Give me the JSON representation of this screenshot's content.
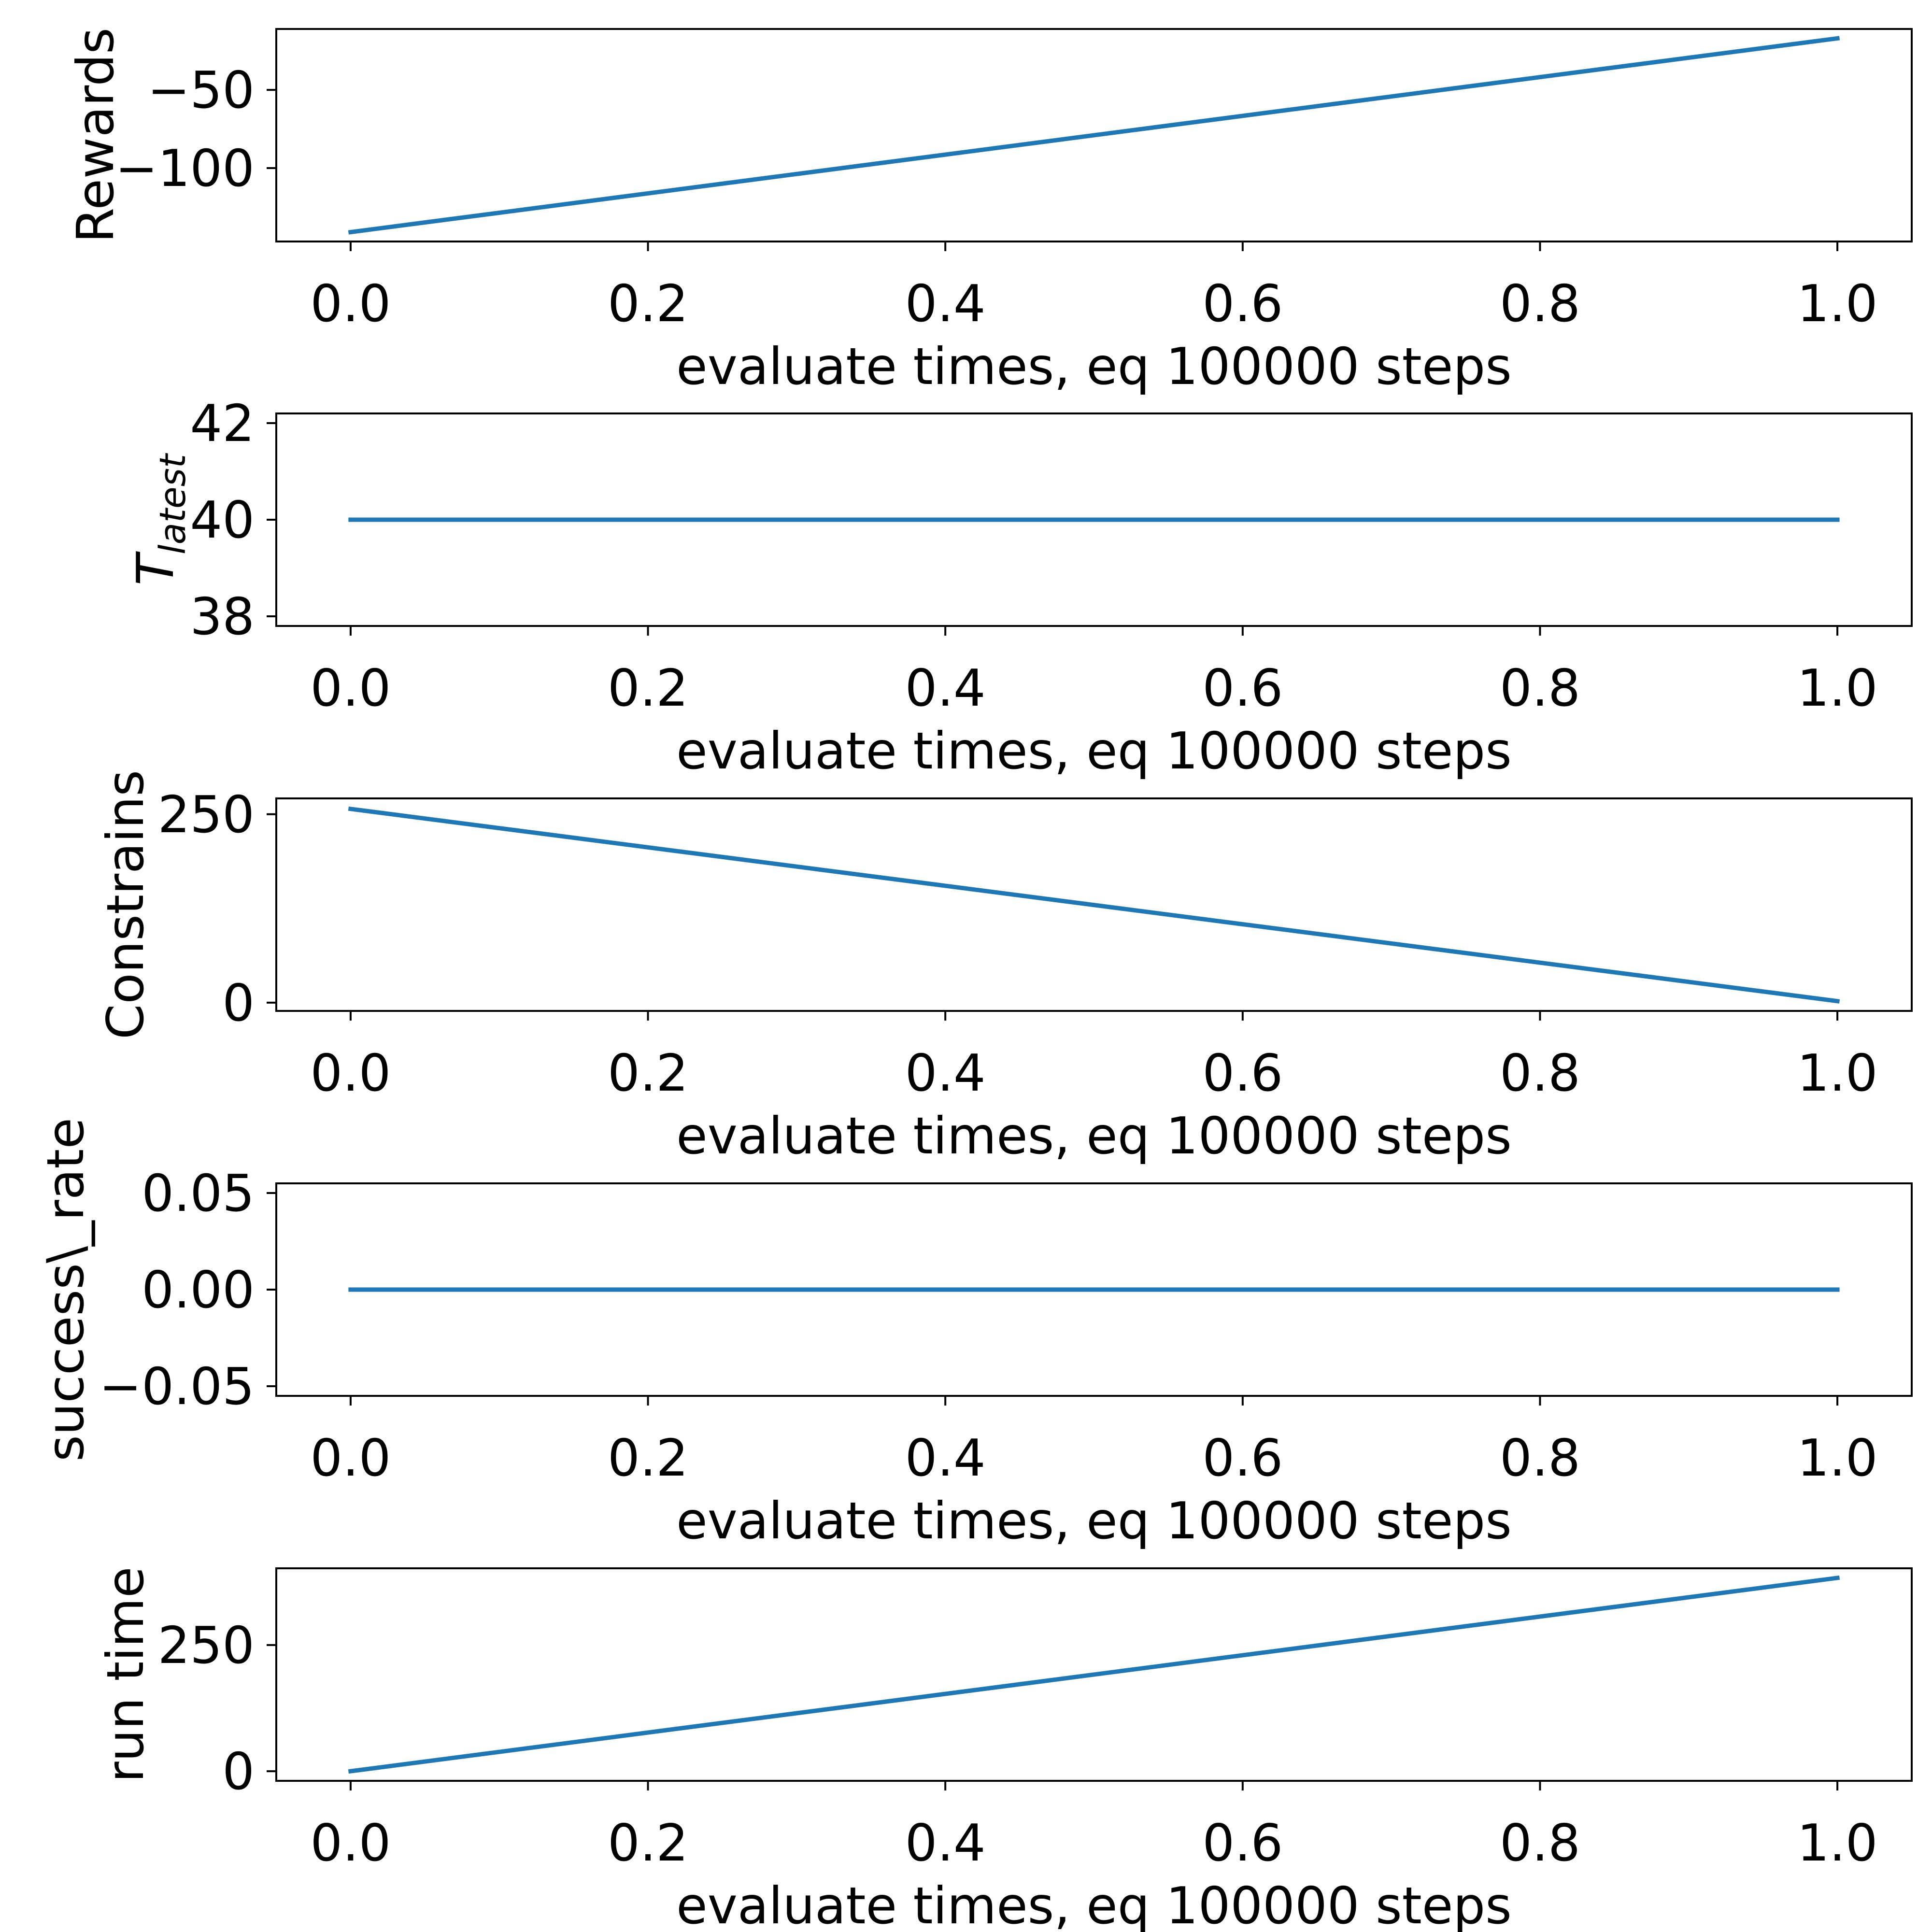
{
  "figure": {
    "line_color": "#1f77b4"
  },
  "chart_data": [
    {
      "type": "line",
      "x": [
        0.0,
        1.0
      ],
      "series": [
        {
          "values": [
            -141,
            -17
          ]
        }
      ],
      "xlabel": "evaluate times, eq 100000 steps",
      "ylabel": "Rewards",
      "ylabel_sub": "",
      "xlim": [
        -0.05,
        1.05
      ],
      "ylim": [
        -147,
        -11
      ],
      "xticks": [
        0.0,
        0.2,
        0.4,
        0.6,
        0.8,
        1.0
      ],
      "xtick_labels": [
        "0.0",
        "0.2",
        "0.4",
        "0.6",
        "0.8",
        "1.0"
      ],
      "yticks": [
        -50,
        -100
      ],
      "ytick_labels": [
        "−50",
        "−100"
      ],
      "grid": false,
      "legend": null
    },
    {
      "type": "line",
      "x": [
        0.0,
        1.0
      ],
      "series": [
        {
          "values": [
            40,
            40
          ]
        }
      ],
      "xlabel": "evaluate times, eq 100000 steps",
      "ylabel": "T",
      "ylabel_sub": "latest",
      "xlim": [
        -0.05,
        1.05
      ],
      "ylim": [
        37.8,
        42.2
      ],
      "xticks": [
        0.0,
        0.2,
        0.4,
        0.6,
        0.8,
        1.0
      ],
      "xtick_labels": [
        "0.0",
        "0.2",
        "0.4",
        "0.6",
        "0.8",
        "1.0"
      ],
      "yticks": [
        38,
        40,
        42
      ],
      "ytick_labels": [
        "38",
        "40",
        "42"
      ],
      "grid": false,
      "legend": null
    },
    {
      "type": "line",
      "x": [
        0.0,
        1.0
      ],
      "series": [
        {
          "values": [
            257,
            2
          ]
        }
      ],
      "xlabel": "evaluate times, eq 100000 steps",
      "ylabel": "Constrains",
      "ylabel_sub": "",
      "xlim": [
        -0.05,
        1.05
      ],
      "ylim": [
        -11,
        271
      ],
      "xticks": [
        0.0,
        0.2,
        0.4,
        0.6,
        0.8,
        1.0
      ],
      "xtick_labels": [
        "0.0",
        "0.2",
        "0.4",
        "0.6",
        "0.8",
        "1.0"
      ],
      "yticks": [
        0,
        250
      ],
      "ytick_labels": [
        "0",
        "250"
      ],
      "grid": false,
      "legend": null
    },
    {
      "type": "line",
      "x": [
        0.0,
        1.0
      ],
      "series": [
        {
          "values": [
            0,
            0
          ]
        }
      ],
      "xlabel": "evaluate times, eq 100000 steps",
      "ylabel": "success\\_rate",
      "ylabel_sub": "",
      "xlim": [
        -0.05,
        1.05
      ],
      "ylim": [
        -0.055,
        0.055
      ],
      "xticks": [
        0.0,
        0.2,
        0.4,
        0.6,
        0.8,
        1.0
      ],
      "xtick_labels": [
        "0.0",
        "0.2",
        "0.4",
        "0.6",
        "0.8",
        "1.0"
      ],
      "yticks": [
        -0.05,
        0.0,
        0.05
      ],
      "ytick_labels": [
        "−0.05",
        "0.00",
        "0.05"
      ],
      "grid": false,
      "legend": null
    },
    {
      "type": "line",
      "x": [
        0.0,
        1.0
      ],
      "series": [
        {
          "values": [
            0,
            383
          ]
        }
      ],
      "xlabel": "evaluate times, eq 100000 steps",
      "ylabel": "run time",
      "ylabel_sub": "",
      "xlim": [
        -0.05,
        1.05
      ],
      "ylim": [
        -19,
        402
      ],
      "xticks": [
        0.0,
        0.2,
        0.4,
        0.6,
        0.8,
        1.0
      ],
      "xtick_labels": [
        "0.0",
        "0.2",
        "0.4",
        "0.6",
        "0.8",
        "1.0"
      ],
      "yticks": [
        0,
        250
      ],
      "ytick_labels": [
        "0",
        "250"
      ],
      "grid": false,
      "legend": null
    }
  ]
}
